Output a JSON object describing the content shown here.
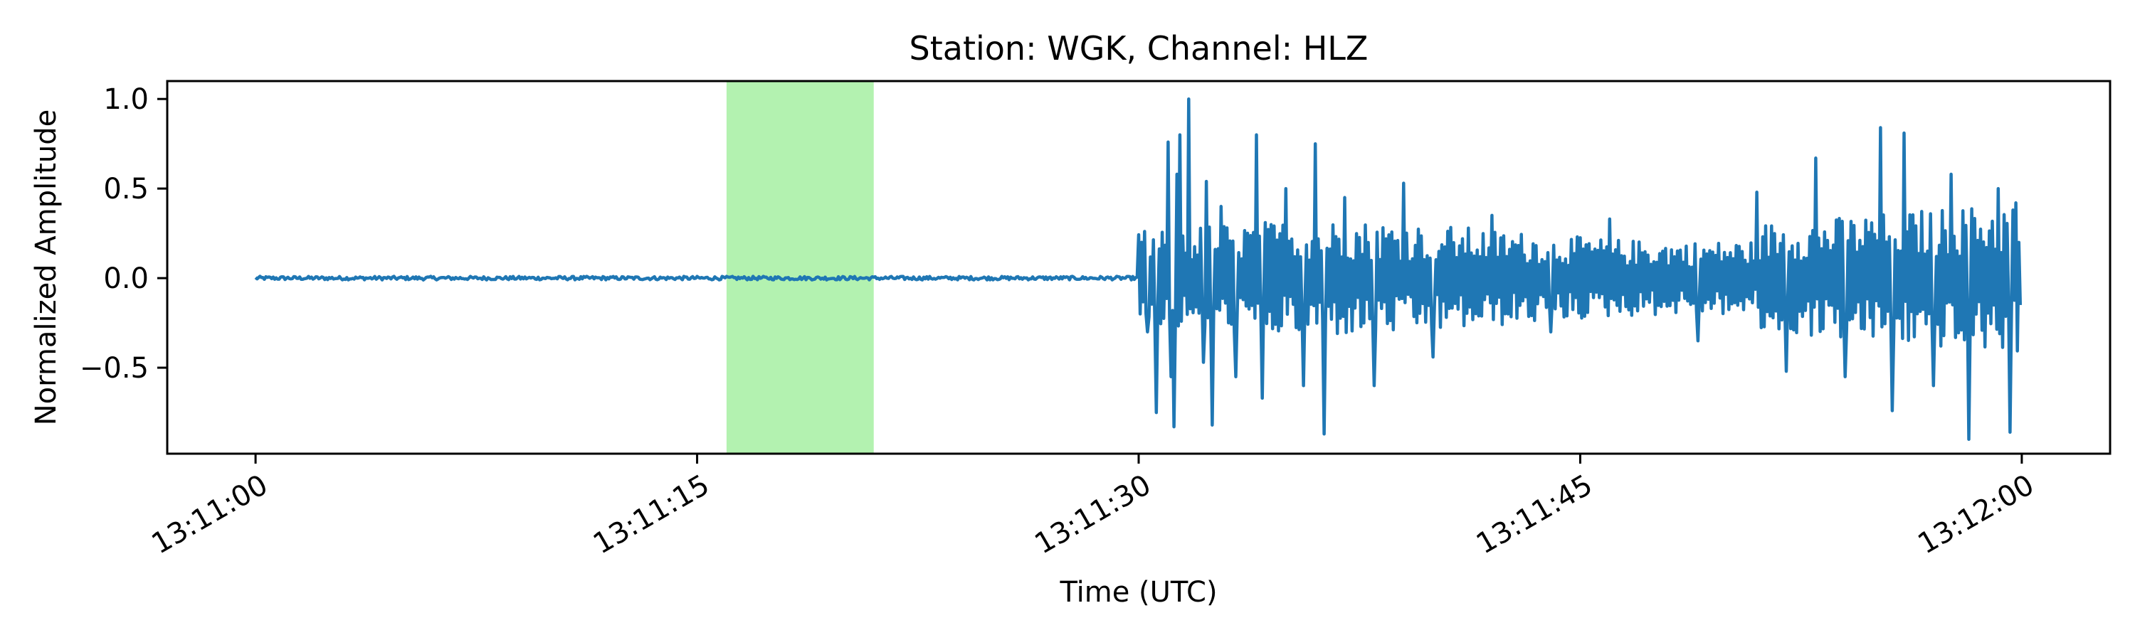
{
  "chart_data": {
    "type": "line",
    "title": "Station: WGK, Channel: HLZ",
    "xlabel": "Time (UTC)",
    "ylabel": "Normalized Amplitude",
    "x_start": "13:11:00",
    "x_end": "13:12:00",
    "xlim": [
      "13:10:57",
      "13:12:03"
    ],
    "ylim": [
      -0.98,
      1.1
    ],
    "x_ticks": [
      "13:11:00",
      "13:11:15",
      "13:11:30",
      "13:11:45",
      "13:12:00"
    ],
    "y_ticks": [
      1.0,
      0.5,
      0.0,
      -0.5
    ],
    "y_tick_labels": [
      "1.0",
      "0.5",
      "0.0",
      "−0.5"
    ],
    "highlight": {
      "start": "13:11:16",
      "end": "13:11:21",
      "color": "#b3f2b0"
    },
    "series": [
      {
        "color": "#1f77b4",
        "segments": [
          {
            "start": "13:11:00",
            "end": "13:11:30",
            "amplitude": 0.01
          },
          {
            "start": "13:11:30",
            "end": "13:12:00",
            "amplitude": "coda"
          }
        ],
        "peaks": [
          {
            "t": "13:11:30.1",
            "y": 0.2
          },
          {
            "t": "13:11:30.3",
            "y": -0.3
          },
          {
            "t": "13:11:30.6",
            "y": 0.38
          },
          {
            "t": "13:11:30.6",
            "y": -0.75
          },
          {
            "t": "13:11:31.0",
            "y": 0.76
          },
          {
            "t": "13:11:31.1",
            "y": -0.55
          },
          {
            "t": "13:11:31.2",
            "y": -0.83
          },
          {
            "t": "13:11:31.3",
            "y": 0.58
          },
          {
            "t": "13:11:31.4",
            "y": 0.8
          },
          {
            "t": "13:11:31.7",
            "y": 1.0
          },
          {
            "t": "13:11:32.2",
            "y": -0.47
          },
          {
            "t": "13:11:32.3",
            "y": 0.54
          },
          {
            "t": "13:11:32.5",
            "y": -0.82
          },
          {
            "t": "13:11:32.8",
            "y": 0.4
          },
          {
            "t": "13:11:33.3",
            "y": -0.55
          },
          {
            "t": "13:11:34.0",
            "y": 0.8
          },
          {
            "t": "13:11:34.2",
            "y": -0.67
          },
          {
            "t": "13:11:35.0",
            "y": 0.5
          },
          {
            "t": "13:11:35.6",
            "y": -0.6
          },
          {
            "t": "13:11:36.0",
            "y": 0.75
          },
          {
            "t": "13:11:36.3",
            "y": -0.87
          },
          {
            "t": "13:11:37.0",
            "y": 0.45
          },
          {
            "t": "13:11:38.0",
            "y": -0.6
          },
          {
            "t": "13:11:39.0",
            "y": 0.53
          },
          {
            "t": "13:11:40.0",
            "y": -0.44
          },
          {
            "t": "13:11:42.0",
            "y": 0.35
          },
          {
            "t": "13:11:44.0",
            "y": -0.3
          },
          {
            "t": "13:11:46.0",
            "y": 0.33
          },
          {
            "t": "13:11:49.0",
            "y": -0.35
          },
          {
            "t": "13:11:51.0",
            "y": 0.48
          },
          {
            "t": "13:11:52.0",
            "y": -0.52
          },
          {
            "t": "13:11:53.0",
            "y": 0.67
          },
          {
            "t": "13:11:54.0",
            "y": -0.55
          },
          {
            "t": "13:11:55.2",
            "y": 0.84
          },
          {
            "t": "13:11:55.6",
            "y": -0.74
          },
          {
            "t": "13:11:56.0",
            "y": 0.81
          },
          {
            "t": "13:11:57.0",
            "y": -0.6
          },
          {
            "t": "13:11:57.6",
            "y": 0.58
          },
          {
            "t": "13:11:58.2",
            "y": -0.9
          },
          {
            "t": "13:11:59.2",
            "y": 0.5
          },
          {
            "t": "13:11:59.6",
            "y": -0.86
          },
          {
            "t": "13:11:59.8",
            "y": 0.42
          },
          {
            "t": "13:12:00.0",
            "y": -0.15
          }
        ]
      }
    ],
    "grid": false,
    "legend": "none"
  }
}
